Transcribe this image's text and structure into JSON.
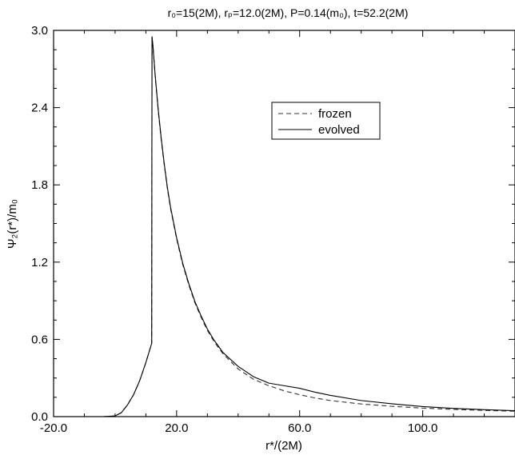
{
  "chart_data": {
    "type": "line",
    "title": "r₀=15(2M), rₚ=12.0(2M), P=0.14(m₀), t=52.2(2M)",
    "xlabel": "r*/(2M)",
    "ylabel": "Ψ₂(r*)/m₀",
    "xlim": [
      -20,
      130
    ],
    "ylim": [
      0,
      3.0
    ],
    "x_tick_labels": [
      "-20.0",
      "20.0",
      "60.0",
      "100.0"
    ],
    "x_ticks": [
      -20,
      20,
      60,
      100
    ],
    "y_tick_labels": [
      "0.0",
      "0.6",
      "1.2",
      "1.8",
      "2.4",
      "3.0"
    ],
    "y_ticks": [
      0,
      0.6,
      1.2,
      1.8,
      2.4,
      3.0
    ],
    "grid": false,
    "legend_position": "upper-middle",
    "series": [
      {
        "name": "frozen",
        "style": "dashed",
        "color": "#333333",
        "x": [
          -20,
          -4,
          0,
          2,
          4,
          6,
          8,
          10,
          11.9,
          12.0,
          12.3,
          13,
          14,
          15,
          16,
          17,
          18,
          20,
          22,
          24,
          26,
          28,
          30,
          32,
          35,
          40,
          45,
          50,
          55,
          60,
          65,
          70,
          80,
          90,
          100,
          110,
          120,
          130
        ],
        "values": [
          0,
          0,
          0.005,
          0.03,
          0.09,
          0.17,
          0.28,
          0.42,
          0.57,
          2.95,
          2.88,
          2.65,
          2.38,
          2.15,
          1.95,
          1.77,
          1.62,
          1.38,
          1.18,
          1.02,
          0.88,
          0.77,
          0.67,
          0.59,
          0.49,
          0.37,
          0.29,
          0.24,
          0.2,
          0.17,
          0.145,
          0.125,
          0.098,
          0.08,
          0.066,
          0.056,
          0.048,
          0.042
        ]
      },
      {
        "name": "evolved",
        "style": "solid",
        "color": "#000000",
        "x": [
          -20,
          -4,
          0,
          2,
          4,
          6,
          8,
          10,
          11.9,
          12.0,
          12.3,
          13,
          14,
          15,
          16,
          17,
          18,
          20,
          22,
          24,
          26,
          28,
          30,
          32,
          35,
          40,
          45,
          50,
          55,
          60,
          65,
          70,
          80,
          90,
          100,
          110,
          120,
          130
        ],
        "values": [
          0,
          0,
          0.005,
          0.03,
          0.09,
          0.17,
          0.28,
          0.42,
          0.57,
          2.95,
          2.88,
          2.66,
          2.39,
          2.16,
          1.96,
          1.78,
          1.63,
          1.39,
          1.19,
          1.03,
          0.89,
          0.78,
          0.68,
          0.6,
          0.5,
          0.39,
          0.31,
          0.26,
          0.24,
          0.22,
          0.19,
          0.165,
          0.125,
          0.1,
          0.078,
          0.064,
          0.054,
          0.046
        ]
      }
    ]
  }
}
